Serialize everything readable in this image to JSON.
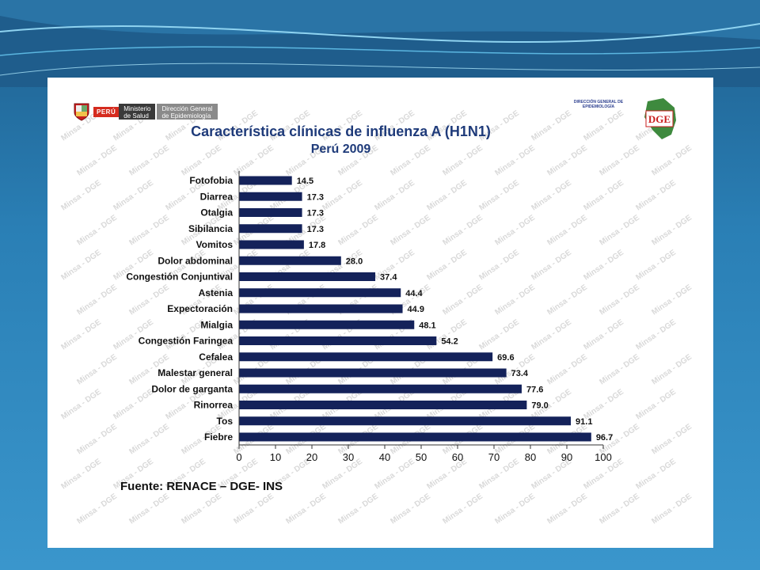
{
  "header": {
    "gov_tag": "PERÚ",
    "ministry_line1": "Ministerio",
    "ministry_line2": "de Salud",
    "directorate_line1": "Dirección General",
    "directorate_line2": "de Epidemiología",
    "right_logo_line1": "DIRECCIÓN GENERAL DE",
    "right_logo_line2": "EPIDEMIOLOGÍA",
    "right_logo_mark": "DGE"
  },
  "watermark": "Minsa - DGE",
  "chart_data": {
    "type": "bar",
    "orientation": "horizontal",
    "title": "Característica clínicas de influenza A (H1N1)",
    "subtitle": "Perú 2009",
    "categories": [
      "Fotofobia",
      "Diarrea",
      "Otalgia",
      "Sibilancia",
      "Vomitos",
      "Dolor abdominal",
      "Congestión Conjuntival",
      "Astenia",
      "Expectoración",
      "Mialgia",
      "Congestión Faringea",
      "Cefalea",
      "Malestar general",
      "Dolor de garganta",
      "Rinorrea",
      "Tos",
      "Fiebre"
    ],
    "values": [
      14.5,
      17.3,
      17.3,
      17.3,
      17.8,
      28.0,
      37.4,
      44.4,
      44.9,
      48.1,
      54.2,
      69.6,
      73.4,
      77.6,
      79.0,
      91.1,
      96.7
    ],
    "value_labels": [
      "14.5",
      "17.3",
      "17.3",
      "17.3",
      "17.8",
      "28.0",
      "37.4",
      "44.4",
      "44.9",
      "48.1",
      "54.2",
      "69.6",
      "73.4",
      "77.6",
      "79.0",
      "91.1",
      "96.7"
    ],
    "xlim": [
      0,
      100
    ],
    "xticks": [
      "0",
      "10",
      "20",
      "30",
      "40",
      "50",
      "60",
      "70",
      "80",
      "90",
      "100"
    ],
    "bar_color": "#14225a",
    "grid": false
  },
  "source": "Fuente: RENACE – DGE- INS"
}
